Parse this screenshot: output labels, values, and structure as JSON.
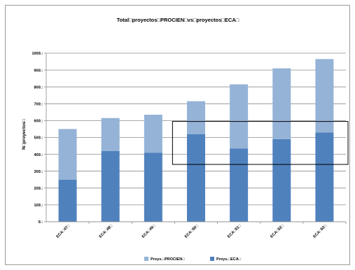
{
  "chart_data": {
    "type": "bar",
    "stacked": true,
    "title": "Total□proyectos□PROCIEN□vs□proyectos□ECA□",
    "ylabel": "N□proyectos□",
    "xlabel": "",
    "ylim": [
      0,
      1000
    ],
    "yticks": [
      "0□",
      "100□",
      "200□",
      "300□",
      "400□",
      "500□",
      "600□",
      "700□",
      "800□",
      "900□",
      "1000□"
    ],
    "grid": true,
    "legend_position": "bottom",
    "categories": [
      "ECA□47□",
      "ECA□48□",
      "ECA□49□",
      "ECA□50□",
      "ECA□51□",
      "ECA□52□",
      "ECA□53□"
    ],
    "series": [
      {
        "name": "Proys.□ECA□",
        "color": "#4f81bd",
        "values": [
          250,
          420,
          410,
          520,
          435,
          490,
          530
        ]
      },
      {
        "name": "Proys.□PROCIEN□",
        "color": "#95b3d7",
        "values": [
          300,
          195,
          225,
          195,
          380,
          420,
          435
        ]
      }
    ],
    "legend_order": [
      1,
      0
    ],
    "annotations": [
      {
        "type": "rectangle",
        "x_range": [
          "ECA□50□",
          "ECA□53□"
        ],
        "y_range": [
          340,
          595
        ]
      }
    ]
  }
}
